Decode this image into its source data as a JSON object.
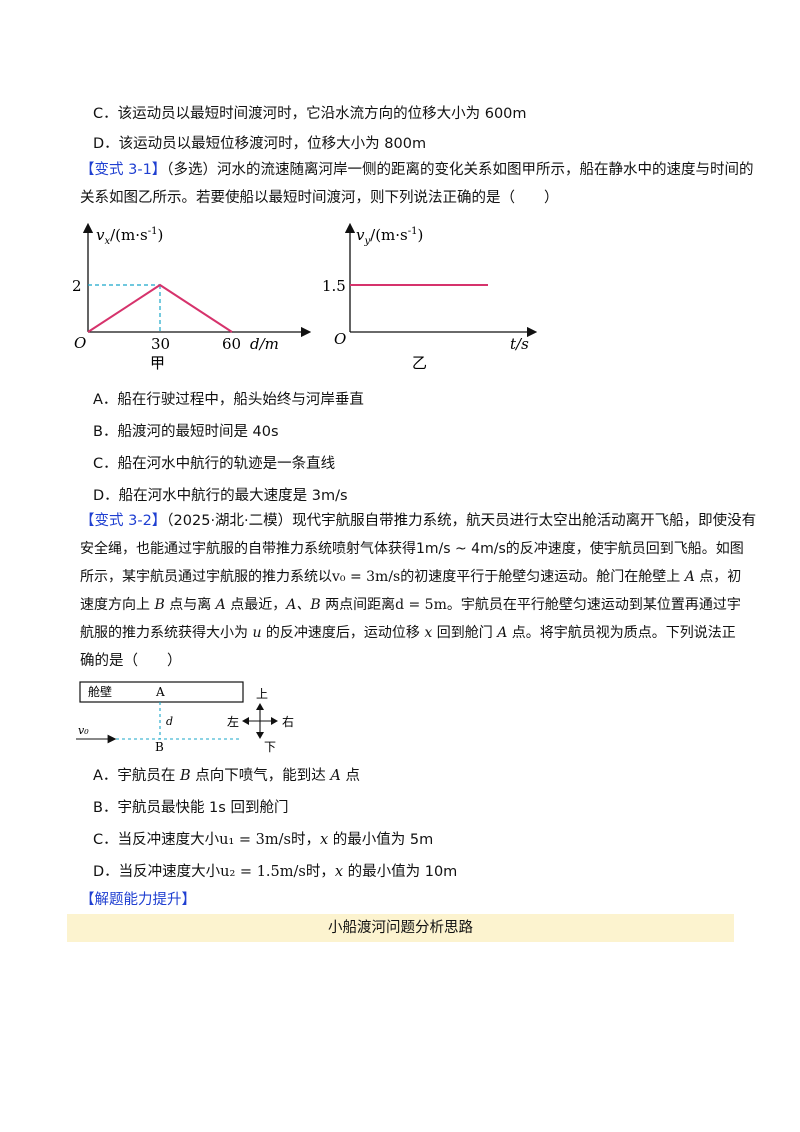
{
  "question_prev": {
    "option_c": "C．该运动员以最短时间渡河时，它沿水流方向的位移大小为 600m",
    "option_d": "D．该运动员以最短位移渡河时，位移大小为 800m"
  },
  "q31": {
    "tag": "【变式 3-1】",
    "line1": "（多选）河水的流速随离河岸一侧的距离的变化关系如图甲所示，船在静水中的速度与时间的",
    "line2": "关系如图乙所示。若要使船以最短时间渡河，则下列说法正确的是（　　）",
    "graph_a": {
      "ylabel_sym": "v",
      "ylabel_sub": "x",
      "ylabel_unit": "/(m·s",
      "ylabel_exp": "-1",
      "ylabel_close": ")",
      "xlabel": "d/m",
      "origin": "O",
      "ytick": "2",
      "xtick1": "30",
      "xtick2": "60",
      "caption": "甲"
    },
    "graph_b": {
      "ylabel_sym": "v",
      "ylabel_sub": "y",
      "ylabel_unit": "/(m·s",
      "ylabel_exp": "-1",
      "ylabel_close": ")",
      "xlabel": "t/s",
      "origin": "O",
      "ytick": "1.5",
      "caption": "乙"
    },
    "option_a": "A．船在行驶过程中，船头始终与河岸垂直",
    "option_b": "B．船渡河的最短时间是 40s",
    "option_c": "C．船在河水中航行的轨迹是一条直线",
    "option_d": "D．船在河水中航行的最大速度是 3m/s"
  },
  "q32": {
    "tag": "【变式 3-2】",
    "line1": "（2025·湖北·二模）现代宇航服自带推力系统，航天员进行太空出舱活动离开飞船，即使没有",
    "line2": "安全绳，也能通过宇航服的自带推力系统喷射气体获得1m/s ~ 4m/s的反冲速度，使宇航员回到飞船。如图",
    "line3a": "所示，某宇航员通过宇航服的推力系统以",
    "line3b": "v₀ = 3m/s",
    "line3c": "的初速度平行于舱壁匀速运动。舱门在舱壁上 ",
    "line3d": "A",
    "line3e": " 点，初",
    "line4a": "速度方向上 ",
    "line4b": "B",
    "line4c": " 点与离 ",
    "line4d": "A",
    "line4e": " 点最近，",
    "line4f": "A、B",
    "line4g": " 两点间距离",
    "line4h": "d = 5m",
    "line4i": "。宇航员在平行舱壁匀速运动到某位置再通过宇",
    "line5a": "航服的推力系统获得大小为 ",
    "line5b": "u",
    "line5c": " 的反冲速度后，运动位移 ",
    "line5d": "x",
    "line5e": " 回到舱门 ",
    "line5f": "A",
    "line5g": " 点。将宇航员视为质点。下列说法正",
    "line6": "确的是（　　）",
    "diagram": {
      "wall": "舱壁",
      "point_a": "A",
      "point_b": "B",
      "dist": "d",
      "v0": "v₀",
      "up": "上",
      "down": "下",
      "left": "左",
      "right": "右"
    },
    "option_a_1": "A．宇航员在 ",
    "option_a_2": "B",
    "option_a_3": " 点向下喷气，能到达 ",
    "option_a_4": "A",
    "option_a_5": " 点",
    "option_b": "B．宇航员最快能 1s 回到舱门",
    "option_c_1": "C．当反冲速度大小",
    "option_c_2": "u₁ = 3m/s",
    "option_c_3": "时，",
    "option_c_4": "x",
    "option_c_5": " 的最小值为 5m",
    "option_d_1": "D．当反冲速度大小",
    "option_d_2": "u₂ = 1.5m/s",
    "option_d_3": "时，",
    "option_d_4": "x",
    "option_d_5": " 的最小值为 10m"
  },
  "section": {
    "tag": "【解题能力提升】",
    "banner": "小船渡河问题分析思路"
  },
  "colors": {
    "tag_blue": "#1f3fd1",
    "graph_line": "#d6336c",
    "dash": "#1aa7c9",
    "banner_bg": "#fcf3cf"
  }
}
